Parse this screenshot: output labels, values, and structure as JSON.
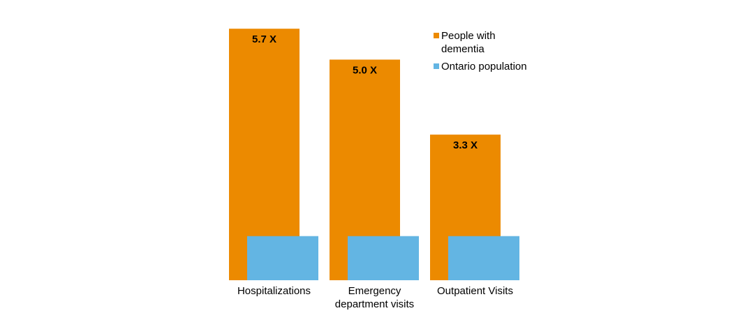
{
  "chart_data": {
    "type": "bar",
    "categories": [
      [
        "Hospitalizations"
      ],
      [
        "Emergency",
        "department visits"
      ],
      [
        "Outpatient Visits"
      ]
    ],
    "series": [
      {
        "name": "People with dementia",
        "values": [
          5.7,
          5.0,
          3.3
        ],
        "color": "#EC8A00",
        "data_labels": [
          "5.7 X",
          "5.0 X",
          "3.3 X"
        ]
      },
      {
        "name": "Ontario population",
        "values": [
          1,
          1,
          1
        ],
        "color": "#63B5E3"
      }
    ],
    "legend": {
      "position": "top-right",
      "entries": [
        [
          "People with",
          "dementia"
        ],
        [
          "Ontario population"
        ]
      ]
    },
    "ylim": [
      0,
      5.7
    ],
    "grid": false,
    "axes_visible": false
  }
}
